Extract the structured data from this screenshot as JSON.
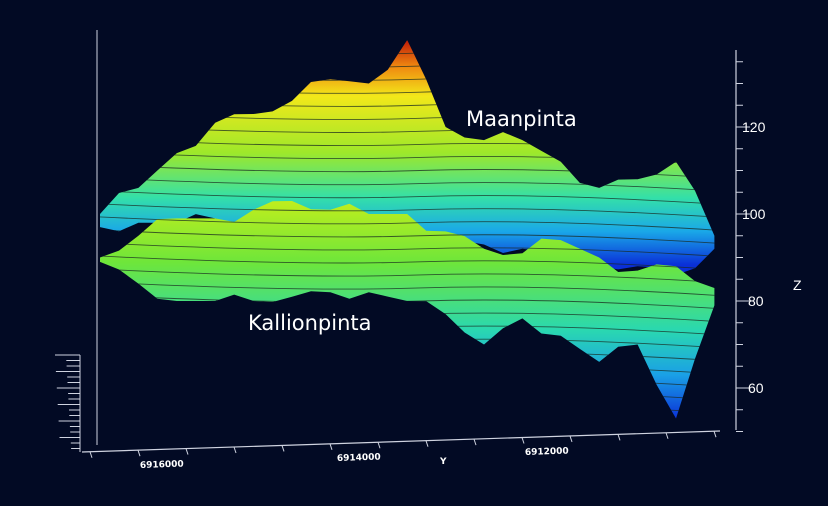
{
  "chart_data": {
    "type": "surface",
    "title": "",
    "zlabel": "Z",
    "ylabel": "Y",
    "zlim": [
      50,
      140
    ],
    "z_ticks": [
      "60",
      "80",
      "100",
      "120"
    ],
    "y_ticks": [
      "6916000",
      "6914000",
      "6912000"
    ],
    "y_samples": [
      6916800,
      6916400,
      6916000,
      6915600,
      6915200,
      6914800,
      6914400,
      6914000,
      6913600,
      6913200,
      6912800,
      6912400,
      6912000,
      6911600,
      6911200,
      6910800,
      6910400
    ],
    "series": [
      {
        "name": "Maanpinta",
        "z_top": [
          100,
          106,
          114,
          121,
          123,
          126,
          131,
          130,
          140,
          120,
          117,
          117,
          112,
          106,
          108,
          112,
          95
        ],
        "z_bottom": [
          97,
          98,
          98,
          99,
          98,
          99,
          97,
          94,
          92,
          93,
          93,
          92,
          91,
          88,
          88,
          86,
          92
        ]
      },
      {
        "name": "Kallionpinta",
        "z_top": [
          90,
          95,
          99,
          99,
          101,
          103,
          101,
          100,
          100,
          96,
          92,
          91,
          94,
          90,
          87,
          88,
          83
        ],
        "z_bottom": [
          89,
          84,
          80,
          80,
          80,
          81,
          82,
          82,
          80,
          77,
          70,
          76,
          72,
          66,
          70,
          53,
          79
        ]
      }
    ],
    "annotations": [
      "Maanpinta",
      "Kallionpinta"
    ],
    "colormap": [
      "#0a2fd8",
      "#1fc8e0",
      "#3ee08a",
      "#b8ee20",
      "#f2e81a",
      "#f08a10",
      "#c01a08"
    ]
  }
}
